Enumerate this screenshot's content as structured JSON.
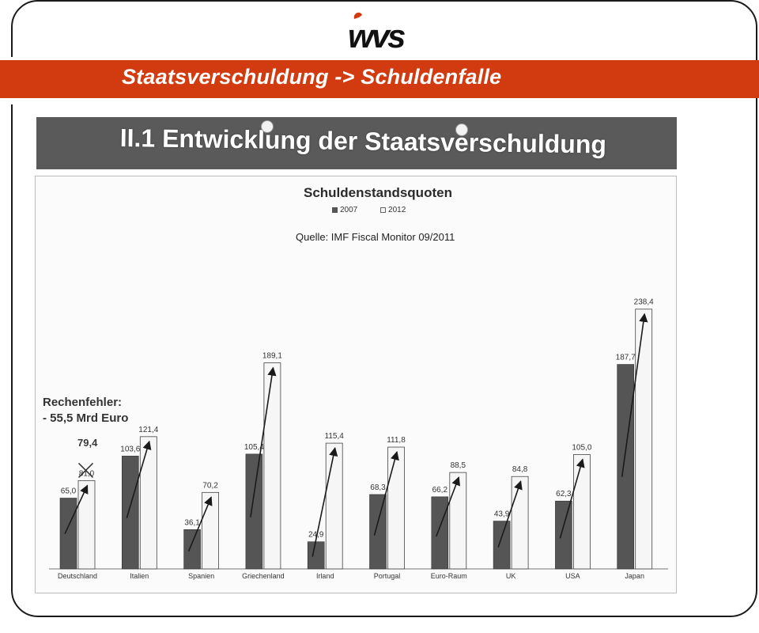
{
  "header": {
    "logo_text": "wvs",
    "title": "Staatsverschuldung -> Schuldenfalle"
  },
  "sheet": {
    "heading": "II.1 Entwicklung der Staatsverschuldung",
    "note_line1": "Rechenfehler:",
    "note_line2": "- 55,5 Mrd Euro",
    "corrected_value": "79,4"
  },
  "colors": {
    "accent": "#d23a10",
    "bar_2007": "#555555",
    "bar_2012": "#f6f6f6"
  },
  "chart_data": {
    "type": "bar",
    "title": "Schuldenstandsquoten",
    "source": "Quelle:  IMF Fiscal Monitor 09/2011",
    "categories": [
      "Deutschland",
      "Italien",
      "Spanien",
      "Griechenland",
      "Irland",
      "Portugal",
      "Euro-Raum",
      "UK",
      "USA",
      "Japan"
    ],
    "series": [
      {
        "name": "2007",
        "values": [
          65.0,
          103.6,
          36.1,
          105.4,
          24.9,
          68.3,
          66.2,
          43.9,
          62.3,
          187.7
        ],
        "labels": [
          "65,0",
          "103,6",
          "36,1",
          "105,4",
          "24,9",
          "68,3",
          "66,2",
          "43,9",
          "62,3",
          "187,7"
        ]
      },
      {
        "name": "2012",
        "values": [
          81.0,
          121.4,
          70.2,
          189.1,
          115.4,
          111.8,
          88.5,
          84.8,
          105.0,
          238.4
        ],
        "labels": [
          "81,0",
          "121,4",
          "70,2",
          "189,1",
          "115,4",
          "111,8",
          "88,5",
          "84,8",
          "105,0",
          "238,4"
        ]
      }
    ],
    "ylim": [
      0,
      240
    ],
    "grid": false,
    "legend_position": "top-center"
  }
}
